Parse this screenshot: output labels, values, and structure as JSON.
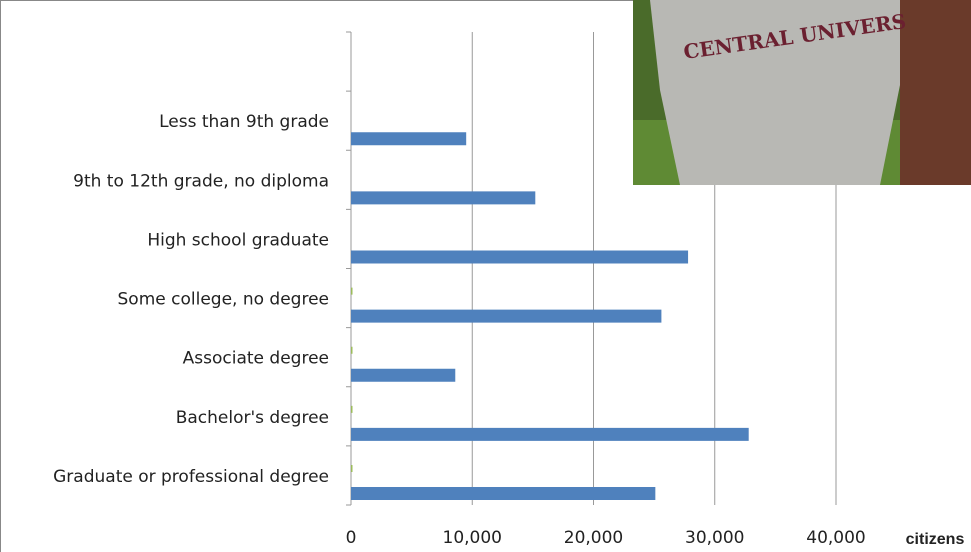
{
  "chart_data": {
    "type": "barh",
    "x_label": "citizens",
    "image_text": "CENTRAL UNIVERS",
    "categories": [
      null,
      "Less than 9th grade",
      "9th to 12th grade, no diploma",
      "High school graduate",
      "Some college, no degree",
      "Associate degree",
      "Bachelor's degree",
      "Graduate or professional degree"
    ],
    "series": [
      {
        "color": "#4f81bd",
        "values": [
          null,
          9500,
          15200,
          27800,
          25600,
          8600,
          32800,
          25100
        ]
      },
      {
        "color": "#9bbb59",
        "values": [
          null,
          null,
          null,
          null,
          100,
          100,
          100,
          100
        ]
      }
    ],
    "xlim": [
      0,
      40000
    ],
    "xticks": [
      {
        "value": 0,
        "label": "0"
      },
      {
        "value": 10000,
        "label": "10,000"
      },
      {
        "value": 20000,
        "label": "20,000"
      },
      {
        "value": 30000,
        "label": "30,000"
      },
      {
        "value": 40000,
        "label": "40,000"
      }
    ],
    "grid": true
  }
}
